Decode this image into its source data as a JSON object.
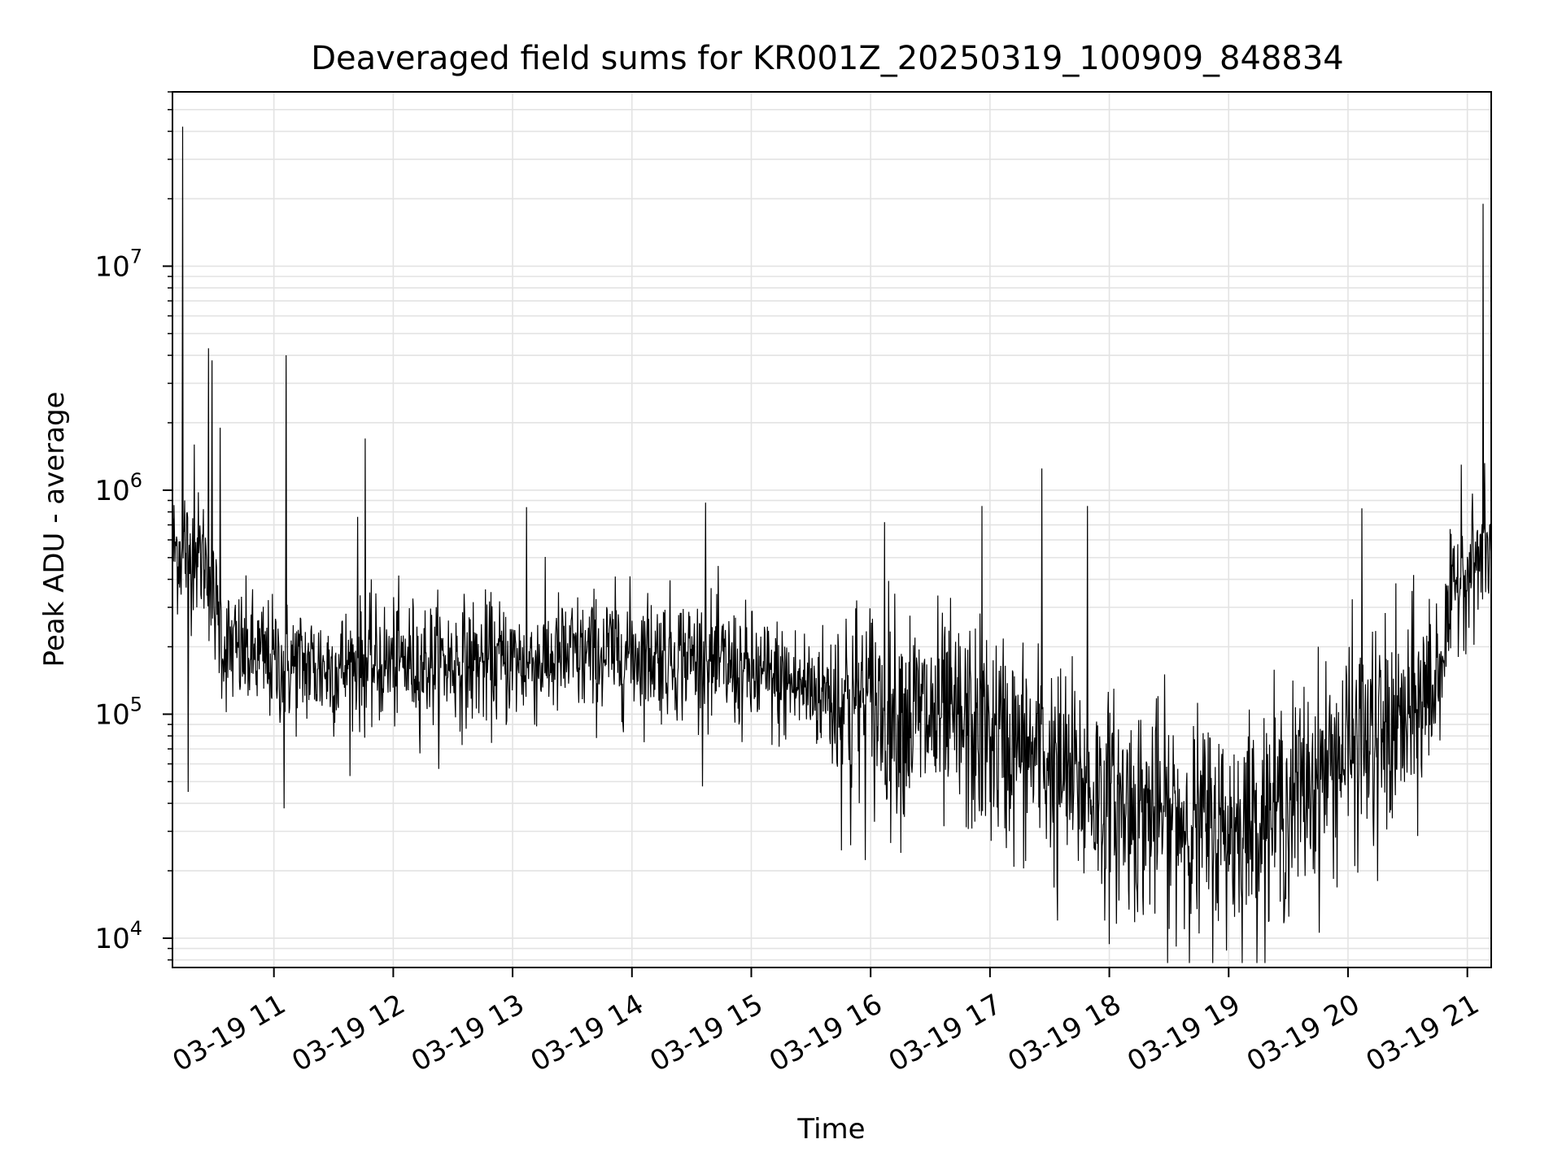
{
  "chart_data": {
    "type": "line",
    "title": "Deaveraged field sums for KR001Z_20250319_100909_848834",
    "xlabel": "Time",
    "ylabel": "Peak ADU - average",
    "yscale": "log",
    "grid": true,
    "grid_minor": true,
    "legend": "none",
    "line_color": "#000000",
    "grid_color": "#e3e3e3",
    "date": "2025-03-19",
    "xlim": [
      "2025-03-19 10:09",
      "2025-03-19 21:12"
    ],
    "ylim": [
      7400,
      60000000
    ],
    "x_ticks": [
      {
        "time": "11:00",
        "label": "03-19 11"
      },
      {
        "time": "12:00",
        "label": "03-19 12"
      },
      {
        "time": "13:00",
        "label": "03-19 13"
      },
      {
        "time": "14:00",
        "label": "03-19 14"
      },
      {
        "time": "15:00",
        "label": "03-19 15"
      },
      {
        "time": "16:00",
        "label": "03-19 16"
      },
      {
        "time": "17:00",
        "label": "03-19 17"
      },
      {
        "time": "18:00",
        "label": "03-19 18"
      },
      {
        "time": "19:00",
        "label": "03-19 19"
      },
      {
        "time": "20:00",
        "label": "03-19 20"
      },
      {
        "time": "21:00",
        "label": "03-19 21"
      }
    ],
    "y_ticks": [
      {
        "value": 10000,
        "base": "10",
        "exp": "4"
      },
      {
        "value": 100000,
        "base": "10",
        "exp": "5"
      },
      {
        "value": 1000000,
        "base": "10",
        "exp": "6"
      },
      {
        "value": 10000000,
        "base": "10",
        "exp": "7"
      }
    ],
    "trend": [
      {
        "time": "10:09",
        "value": 550000
      },
      {
        "time": "10:25",
        "value": 500000
      },
      {
        "time": "10:35",
        "value": 200000
      },
      {
        "time": "11:00",
        "value": 170000
      },
      {
        "time": "11:30",
        "value": 160000
      },
      {
        "time": "12:00",
        "value": 170000
      },
      {
        "time": "13:00",
        "value": 170000
      },
      {
        "time": "14:00",
        "value": 190000
      },
      {
        "time": "14:30",
        "value": 180000
      },
      {
        "time": "15:00",
        "value": 150000
      },
      {
        "time": "15:30",
        "value": 130000
      },
      {
        "time": "16:00",
        "value": 110000
      },
      {
        "time": "16:30",
        "value": 95000
      },
      {
        "time": "17:00",
        "value": 80000
      },
      {
        "time": "17:30",
        "value": 60000
      },
      {
        "time": "18:00",
        "value": 40000
      },
      {
        "time": "18:30",
        "value": 35000
      },
      {
        "time": "19:00",
        "value": 30000
      },
      {
        "time": "19:30",
        "value": 40000
      },
      {
        "time": "20:00",
        "value": 70000
      },
      {
        "time": "20:30",
        "value": 90000
      },
      {
        "time": "20:45",
        "value": 150000
      },
      {
        "time": "20:55",
        "value": 400000
      },
      {
        "time": "21:12",
        "value": 550000
      }
    ],
    "spikes": [
      {
        "time": "10:14",
        "value": 42000000
      },
      {
        "time": "10:15",
        "value": 900000
      },
      {
        "time": "10:17",
        "value": 1400000
      },
      {
        "time": "10:17",
        "value": 45000
      },
      {
        "time": "10:20",
        "value": 1600000
      },
      {
        "time": "10:27",
        "value": 4300000
      },
      {
        "time": "10:29",
        "value": 3800000
      },
      {
        "time": "10:33",
        "value": 1900000
      },
      {
        "time": "11:06",
        "value": 4000000
      },
      {
        "time": "11:05",
        "value": 38000
      },
      {
        "time": "11:42",
        "value": 760000
      },
      {
        "time": "11:46",
        "value": 760000
      },
      {
        "time": "11:46",
        "value": 1700000
      },
      {
        "time": "13:07",
        "value": 840000
      },
      {
        "time": "14:37",
        "value": 880000
      },
      {
        "time": "15:50",
        "value": 26000
      },
      {
        "time": "16:07",
        "value": 720000
      },
      {
        "time": "16:56",
        "value": 850000
      },
      {
        "time": "17:26",
        "value": 1250000
      },
      {
        "time": "17:34",
        "value": 12000
      },
      {
        "time": "17:49",
        "value": 850000
      },
      {
        "time": "18:30",
        "value": 11000
      },
      {
        "time": "18:45",
        "value": 10500
      },
      {
        "time": "20:07",
        "value": 830000
      },
      {
        "time": "20:15",
        "value": 18000
      },
      {
        "time": "20:57",
        "value": 1300000
      },
      {
        "time": "21:08",
        "value": 19000000
      }
    ]
  }
}
